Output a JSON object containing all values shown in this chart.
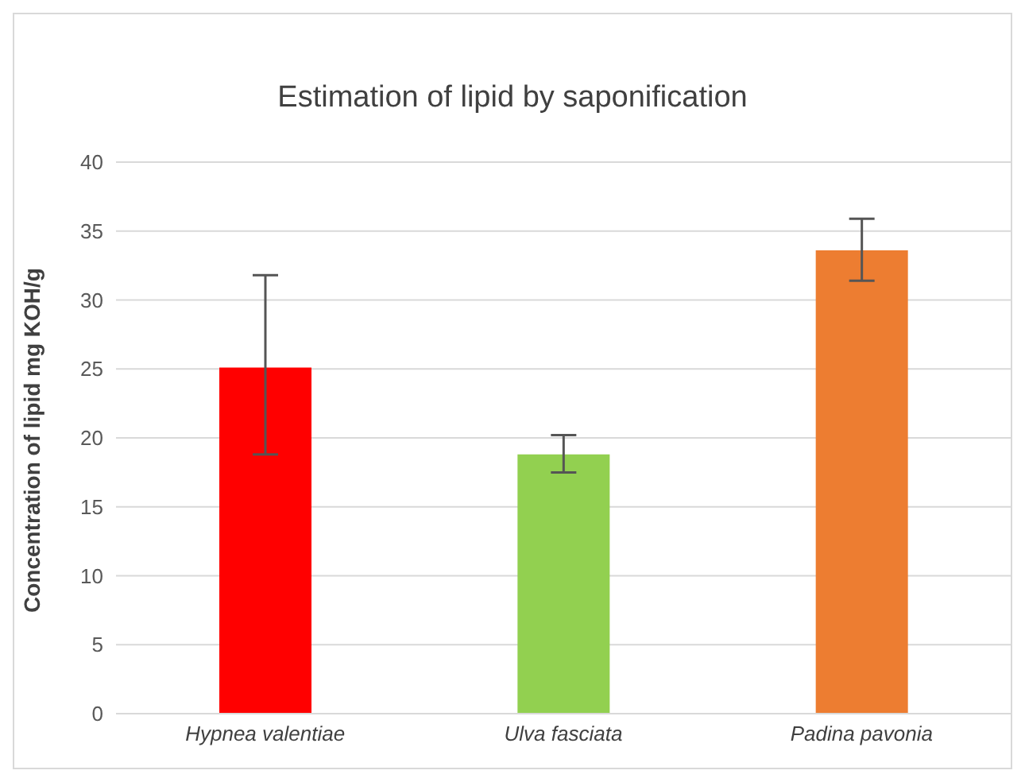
{
  "chart_data": {
    "type": "bar",
    "title": "Estimation of lipid by saponification",
    "ylabel": "Concentration of lipid mg KOH/g",
    "categories": [
      "Hypnea valentiae",
      "Ulva fasciata",
      "Padina pavonia"
    ],
    "values": [
      25.1,
      18.8,
      33.6
    ],
    "colors": [
      "#ff0000",
      "#92d050",
      "#ed7d31"
    ],
    "errors": [
      [
        18.8,
        31.8
      ],
      [
        17.5,
        20.2
      ],
      [
        31.4,
        35.9
      ]
    ],
    "ylim": [
      0,
      40
    ],
    "yticks": [
      0,
      5,
      10,
      15,
      20,
      25,
      30,
      35,
      40
    ],
    "grid": "y"
  }
}
